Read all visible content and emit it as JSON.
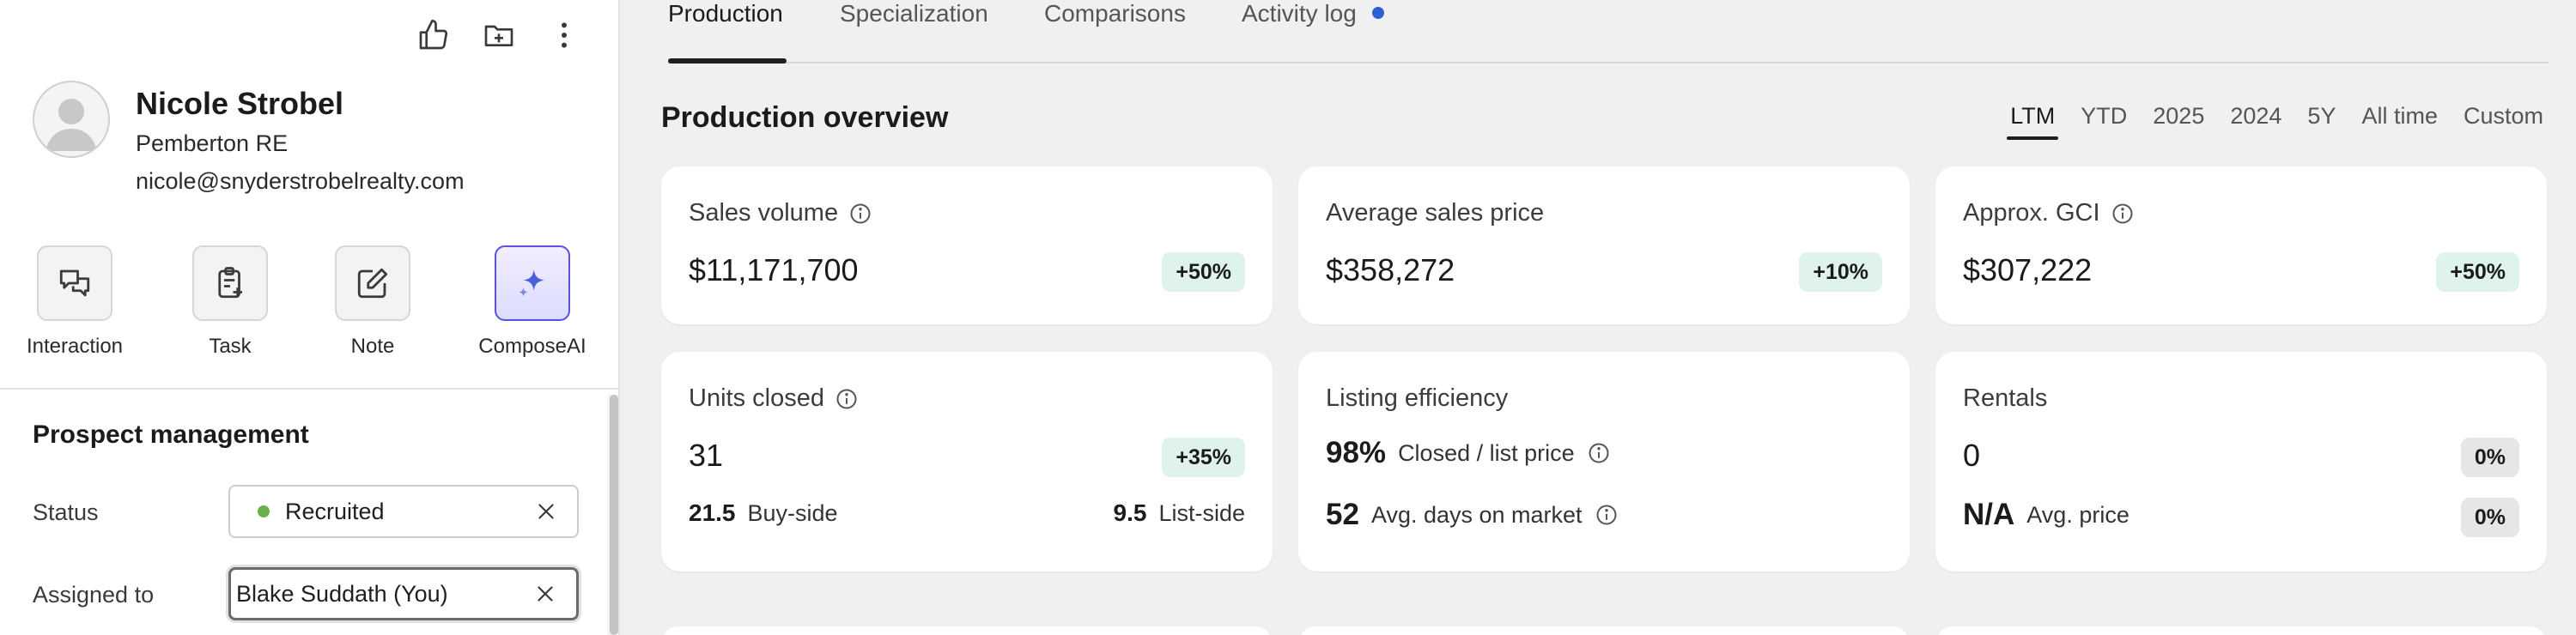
{
  "profile": {
    "name": "Nicole Strobel",
    "company": "Pemberton RE",
    "email": "nicole@snyderstrobelrealty.com"
  },
  "top_actions": [
    {
      "icon": "thumbs-up-icon"
    },
    {
      "icon": "folder-add-icon"
    },
    {
      "icon": "more-vertical-icon"
    }
  ],
  "quick_actions": [
    {
      "label": "Interaction",
      "icon": "chat-bubbles-icon"
    },
    {
      "label": "Task",
      "icon": "clipboard-add-icon"
    },
    {
      "label": "Note",
      "icon": "edit-note-icon"
    },
    {
      "label": "ComposeAI",
      "icon": "sparkle-icon"
    }
  ],
  "prospect": {
    "title": "Prospect management",
    "status_label": "Status",
    "status_value": "Recruited",
    "status_color": "#6ab04c",
    "assigned_label": "Assigned to",
    "assigned_value": "Blake Suddath (You)"
  },
  "tabs": [
    {
      "label": "Production",
      "active": true
    },
    {
      "label": "Specialization",
      "active": false
    },
    {
      "label": "Comparisons",
      "active": false
    },
    {
      "label": "Activity log",
      "active": false,
      "dot_color": "#2f5fd0"
    }
  ],
  "overview": {
    "title": "Production overview",
    "periods": [
      "LTM",
      "YTD",
      "2025",
      "2024",
      "5Y",
      "All time",
      "Custom"
    ],
    "active_period": "LTM"
  },
  "cards": {
    "sales_volume": {
      "title": "Sales volume",
      "value": "$11,171,700",
      "change": "+50%"
    },
    "avg_sales_price": {
      "title": "Average sales price",
      "value": "$358,272",
      "change": "+10%"
    },
    "approx_gci": {
      "title": "Approx. GCI",
      "value": "$307,222",
      "change": "+50%"
    },
    "units_closed": {
      "title": "Units closed",
      "value": "31",
      "change": "+35%",
      "buy_side_value": "21.5",
      "buy_side_label": "Buy-side",
      "list_side_value": "9.5",
      "list_side_label": "List-side"
    },
    "listing_efficiency": {
      "title": "Listing efficiency",
      "ratio_value": "98%",
      "ratio_label": "Closed / list price",
      "dom_value": "52",
      "dom_label": "Avg. days on market"
    },
    "rentals": {
      "title": "Rentals",
      "value": "0",
      "change": "0%",
      "avg_price_value": "N/A",
      "avg_price_label": "Avg. price",
      "avg_price_change": "0%"
    }
  },
  "colors": {
    "badge_up_bg": "#dff3ec",
    "badge_neutral_bg": "#e6e6e6",
    "compose_ai_accent": "#5a52d8"
  }
}
